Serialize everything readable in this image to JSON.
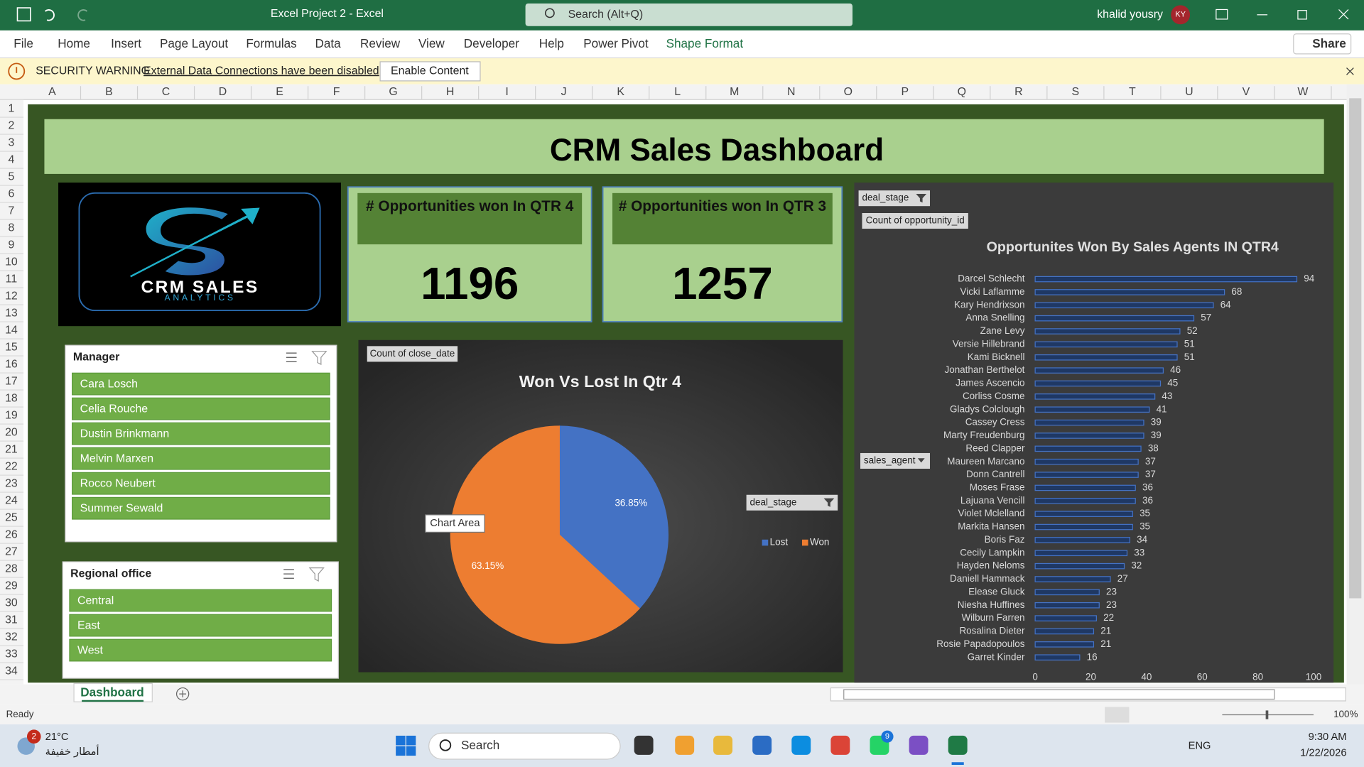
{
  "window": {
    "title": "Excel Project 2  -  Excel",
    "search": "Search (Alt+Q)",
    "user": "khalid yousry",
    "initials": "KY"
  },
  "ribbon": {
    "tabs": [
      "File",
      "Home",
      "Insert",
      "Page Layout",
      "Formulas",
      "Data",
      "Review",
      "View",
      "Developer",
      "Help",
      "Power Pivot",
      "Shape Format"
    ],
    "share": "Share"
  },
  "security_bar": {
    "label": "SECURITY WARNING",
    "message": "External Data Connections have been disabled",
    "button": "Enable Content"
  },
  "sheet": {
    "columns": [
      "A",
      "B",
      "C",
      "D",
      "E",
      "F",
      "G",
      "H",
      "I",
      "J",
      "K",
      "L",
      "M",
      "N",
      "O",
      "P",
      "Q",
      "R",
      "S",
      "T",
      "U",
      "V",
      "W"
    ],
    "rows": [
      1,
      2,
      3,
      4,
      5,
      6,
      7,
      8,
      9,
      10,
      11,
      12,
      13,
      14,
      15,
      16,
      17,
      18,
      19,
      20,
      21,
      22,
      23,
      24,
      25,
      26,
      27,
      28,
      29,
      30,
      31,
      32,
      33,
      34
    ]
  },
  "dashboard": {
    "title": "CRM Sales Dashboard",
    "logo": {
      "title": "CRM SALES",
      "subtitle": "ANALYTICS"
    },
    "kpis": [
      {
        "label": "# Opportunities won In QTR 4",
        "value": 1196
      },
      {
        "label": "# Opportunities won In QTR 3",
        "value": 1257
      }
    ],
    "slicers": [
      {
        "title": "Manager",
        "items": [
          "Cara Losch",
          "Celia Rouche",
          "Dustin Brinkmann",
          "Melvin Marxen",
          "Rocco Neubert",
          "Summer Sewald"
        ]
      },
      {
        "title": "Regional office",
        "items": [
          "Central",
          "East",
          "West"
        ]
      }
    ]
  },
  "chart_data": [
    {
      "type": "pie",
      "title": "Won Vs Lost In Qtr 4",
      "field_button": "Count of close_date",
      "legend_filter": "deal_stage",
      "tooltip": "Chart Area",
      "categories": [
        "Lost",
        "Won"
      ],
      "values": [
        36.85,
        63.15
      ],
      "value_labels": [
        "36.85%",
        "63.15%"
      ],
      "colors": [
        "#4472c4",
        "#ed7d31"
      ],
      "legend": "right"
    },
    {
      "type": "bar",
      "orientation": "horizontal",
      "title": "Opportunites Won By Sales Agents IN QTR4",
      "filter_button": "deal_stage",
      "field_button": "Count of opportunity_id",
      "axis_button": "sales_agent",
      "categories": [
        "Darcel Schlecht",
        "Vicki Laflamme",
        "Kary Hendrixson",
        "Anna Snelling",
        "Zane Levy",
        "Versie Hillebrand",
        "Kami Bicknell",
        "Jonathan Berthelot",
        "James Ascencio",
        "Corliss Cosme",
        "Gladys Colclough",
        "Cassey Cress",
        "Marty Freudenburg",
        "Reed Clapper",
        "Maureen Marcano",
        "Donn Cantrell",
        "Moses Frase",
        "Lajuana Vencill",
        "Violet Mclelland",
        "Markita Hansen",
        "Boris Faz",
        "Cecily Lampkin",
        "Hayden Neloms",
        "Daniell Hammack",
        "Elease Gluck",
        "Niesha Huffines",
        "Wilburn Farren",
        "Rosalina Dieter",
        "Rosie Papadopoulos",
        "Garret Kinder"
      ],
      "values": [
        94,
        68,
        64,
        57,
        52,
        51,
        51,
        46,
        45,
        43,
        41,
        39,
        39,
        38,
        37,
        37,
        36,
        36,
        35,
        35,
        34,
        33,
        32,
        27,
        23,
        23,
        22,
        21,
        21,
        16
      ],
      "color": "#4472c4",
      "xlim": [
        0,
        100
      ],
      "xticks": [
        0,
        20,
        40,
        60,
        80,
        100
      ],
      "data_labels": true
    }
  ],
  "sheet_tabs": [
    "Dashboard"
  ],
  "status_bar": {
    "status": "Ready",
    "zoom": "100%"
  },
  "taskbar": {
    "temperature": "21°C",
    "weather": "أمطار خفيفة",
    "weather_badge": 2,
    "search": "Search",
    "whatsapp_badge": 9,
    "language": "ENG",
    "time": "9:30 AM",
    "date": "1/22/2026"
  }
}
